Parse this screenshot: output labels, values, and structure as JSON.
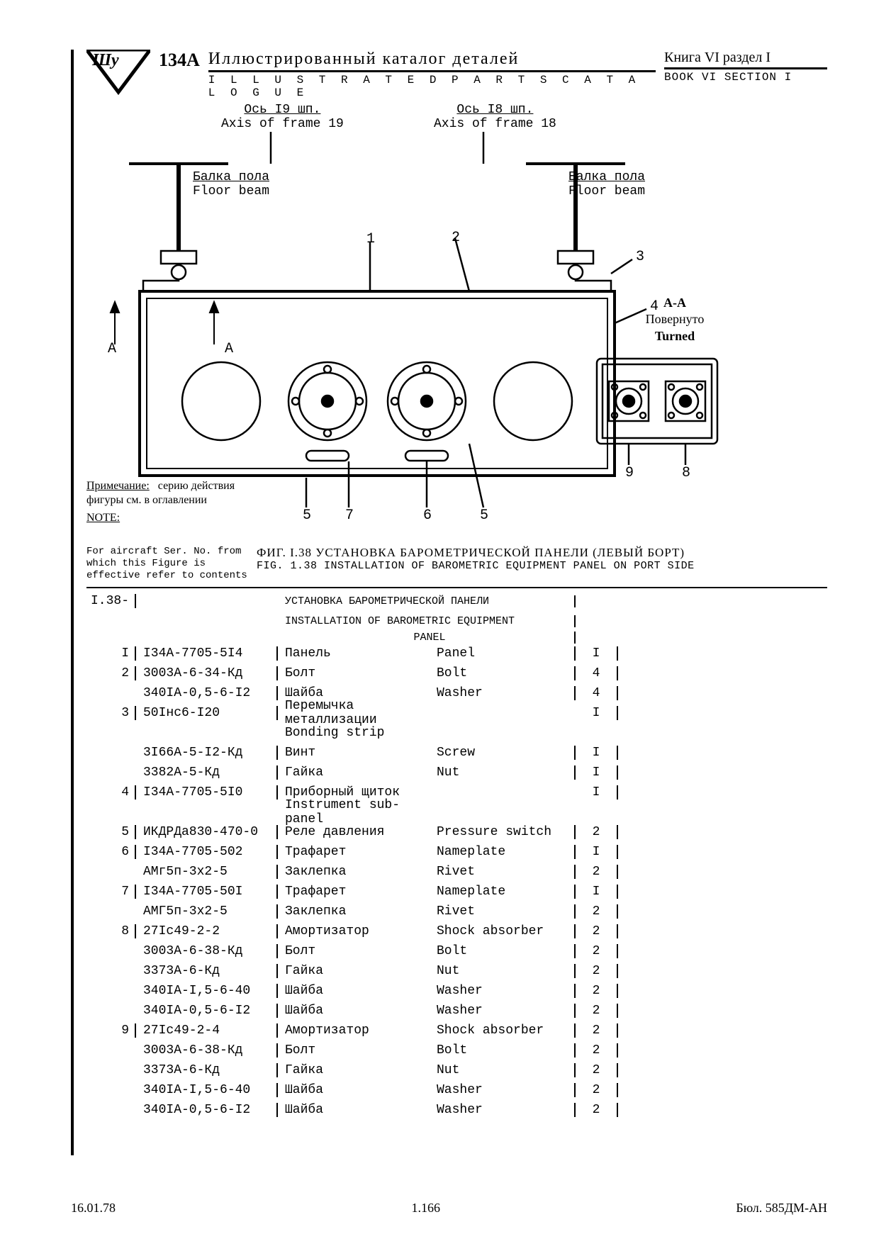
{
  "header": {
    "model": "134A",
    "title_ru": "Иллюстрированный   каталог  деталей",
    "title_en": "I L L U S T R A T E D    P A R T S    C A T A L O G U E",
    "book_ru": "Книга VI  раздел  I",
    "book_en": "BOOK  VI  SECTION  I"
  },
  "diagram": {
    "axis19_ru": "Ось I9 шп.",
    "axis19_en": "Axis of frame 19",
    "axis18_ru": "Ось I8 шп.",
    "axis18_en": "Axis of frame 18",
    "beam_ru": "Балка пола",
    "beam_en": "Floor beam",
    "section_A": "A",
    "aa_label": "A-A",
    "aa_ru": "Повернуто",
    "aa_en": "Turned",
    "callouts": {
      "n1": "1",
      "n2": "2",
      "n3": "3",
      "n4": "4",
      "n5": "5",
      "n6": "6",
      "n7": "7",
      "n8": "8",
      "n9": "9"
    }
  },
  "notes": {
    "ru_label": "Примечание:",
    "ru_text1": "серию действия",
    "ru_text2": "фигуры см. в оглавлении",
    "en_label": "NOTE:",
    "en_text": "For aircraft Ser. No. from which this Figure is effective refer to contents"
  },
  "figcap": {
    "ru": "ФИГ. I.38   УСТАНОВКА БАРОМЕТРИЧЕСКОЙ ПАНЕЛИ (ЛЕВЫЙ БОРТ)",
    "en": "FIG. 1.38 INSTALLATION OF BAROMETRIC EQUIPMENT PANEL ON PORT SIDE"
  },
  "table": {
    "figno": "I.38-",
    "head_ru": "УСТАНОВКА БАРОМЕТРИЧЕСКОЙ ПАНЕЛИ",
    "head_en": "INSTALLATION OF BAROMETRIC EQUIPMENT",
    "head_en2": "PANEL",
    "rows": [
      {
        "idx": "I",
        "pn": "I34A-7705-5I4",
        "ru": "Панель",
        "en": "Panel",
        "qty": "I"
      },
      {
        "idx": "2",
        "pn": "3003А-6-34-Кд",
        "ru": "Болт",
        "en": "Bolt",
        "qty": "4"
      },
      {
        "idx": "",
        "pn": "340IA-0,5-6-I2",
        "ru": "Шайба",
        "en": "Washer",
        "qty": "4"
      },
      {
        "idx": "3",
        "pn": "50Iнс6-I20",
        "ru": "Перемычка металлизации",
        "en": "",
        "qty": "I"
      },
      {
        "idx": "",
        "pn": "",
        "ru": "Bonding strip",
        "en": "",
        "qty": ""
      },
      {
        "idx": "",
        "pn": "3I66A-5-I2-Кд",
        "ru": "Винт",
        "en": "Screw",
        "qty": "I"
      },
      {
        "idx": "",
        "pn": "3382А-5-Кд",
        "ru": "Гайка",
        "en": "Nut",
        "qty": "I"
      },
      {
        "idx": "4",
        "pn": "I34A-7705-5I0",
        "ru": "Приборный щиток",
        "en": "",
        "qty": "I"
      },
      {
        "idx": "",
        "pn": "",
        "ru": "Instrument sub-panel",
        "en": "",
        "qty": ""
      },
      {
        "idx": "5",
        "pn": "ИКДРДа830-470-0",
        "ru": "Реле давления",
        "en": "Pressure switch",
        "qty": "2"
      },
      {
        "idx": "6",
        "pn": "I34A-7705-502",
        "ru": "Трафарет",
        "en": "Nameplate",
        "qty": "I"
      },
      {
        "idx": "",
        "pn": "АМг5п-3x2-5",
        "ru": "Заклепка",
        "en": "Rivet",
        "qty": "2"
      },
      {
        "idx": "7",
        "pn": "I34A-7705-50I",
        "ru": "Трафарет",
        "en": "Nameplate",
        "qty": "I"
      },
      {
        "idx": "",
        "pn": "АМГ5п-3x2-5",
        "ru": "Заклепка",
        "en": "Rivet",
        "qty": "2"
      },
      {
        "idx": "8",
        "pn": "27Iс49-2-2",
        "ru": "Амортизатор",
        "en": "Shock absorber",
        "qty": "2"
      },
      {
        "idx": "",
        "pn": "3003А-6-38-Кд",
        "ru": "Болт",
        "en": "Bolt",
        "qty": "2"
      },
      {
        "idx": "",
        "pn": "3373А-6-Кд",
        "ru": "Гайка",
        "en": "Nut",
        "qty": "2"
      },
      {
        "idx": "",
        "pn": "340IA-I,5-6-40",
        "ru": "Шайба",
        "en": "Washer",
        "qty": "2"
      },
      {
        "idx": "",
        "pn": "340IA-0,5-6-I2",
        "ru": "Шайба",
        "en": "Washer",
        "qty": "2"
      },
      {
        "idx": "9",
        "pn": "27Iс49-2-4",
        "ru": "Амортизатор",
        "en": "Shock absorber",
        "qty": "2"
      },
      {
        "idx": "",
        "pn": "3003А-6-38-Кд",
        "ru": "Болт",
        "en": "Bolt",
        "qty": "2"
      },
      {
        "idx": "",
        "pn": "3373А-6-Кд",
        "ru": "Гайка",
        "en": "Nut",
        "qty": "2"
      },
      {
        "idx": "",
        "pn": "340IA-I,5-6-40",
        "ru": "Шайба",
        "en": "Washer",
        "qty": "2"
      },
      {
        "idx": "",
        "pn": "340IA-0,5-6-I2",
        "ru": "Шайба",
        "en": "Washer",
        "qty": "2"
      }
    ]
  },
  "footer": {
    "date": "16.01.78",
    "page": "1.166",
    "bul": "Бюл. 585ДМ-АН"
  },
  "style": {
    "stroke": "#000000",
    "fill_bg": "#ffffff",
    "font_mono": "Courier New",
    "font_serif": "Times New Roman"
  }
}
